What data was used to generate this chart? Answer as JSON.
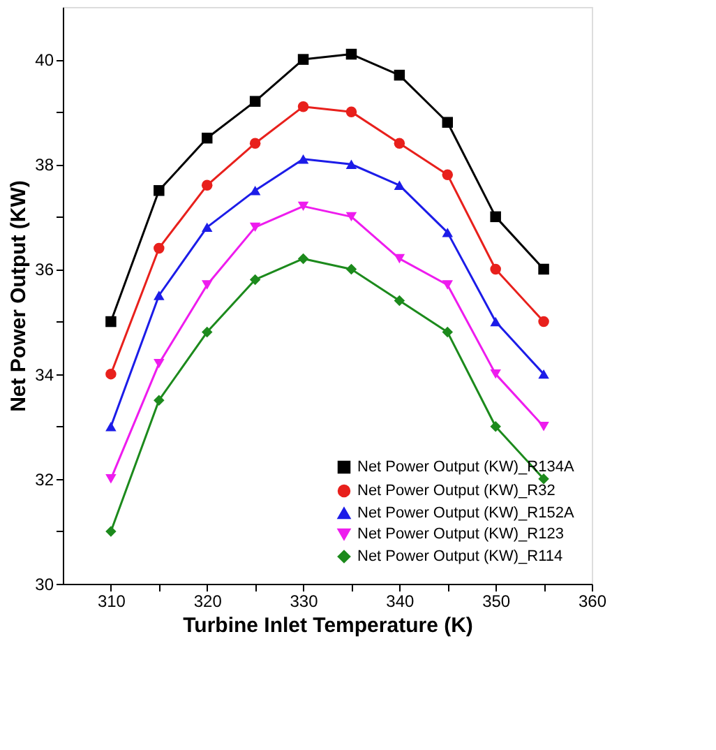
{
  "chart_data": {
    "type": "line",
    "xlabel": "Turbine Inlet Temperature (K)",
    "ylabel": "Net Power Output (KW)",
    "x": [
      310,
      315,
      320,
      325,
      330,
      335,
      340,
      345,
      350,
      355
    ],
    "xlim": [
      305,
      360
    ],
    "ylim": [
      30,
      41
    ],
    "xticks": [
      310,
      {
        "value": 315,
        "label": null
      },
      320,
      {
        "value": 325,
        "label": null
      },
      330,
      {
        "value": 335,
        "label": null
      },
      340,
      {
        "value": 345,
        "label": null
      },
      350,
      {
        "value": 355,
        "label": null
      },
      360
    ],
    "yticks": [
      30,
      {
        "value": 31,
        "label": null
      },
      32,
      {
        "value": 33,
        "label": null
      },
      34,
      {
        "value": 35,
        "label": null
      },
      36,
      {
        "value": 37,
        "label": null
      },
      38,
      {
        "value": 39,
        "label": null
      },
      40
    ],
    "grid": false,
    "legend": "bottom right",
    "series": [
      {
        "name": "Net Power Output (KW)_R134A",
        "color": "#000000",
        "marker": "square",
        "values": [
          35,
          37.5,
          38.5,
          39.2,
          40,
          40.1,
          39.7,
          38.8,
          37,
          36
        ]
      },
      {
        "name": "Net Power Output (KW)_R32",
        "color": "#e8201c",
        "marker": "circle",
        "values": [
          34,
          36.4,
          37.6,
          38.4,
          39.1,
          39.0,
          38.4,
          37.8,
          36,
          35
        ]
      },
      {
        "name": "Net Power Output (KW)_R152A",
        "color": "#1c1ce8",
        "marker": "triangle",
        "values": [
          33,
          35.5,
          36.8,
          37.5,
          38.1,
          38.0,
          37.6,
          36.7,
          35,
          34
        ]
      },
      {
        "name": "Net Power Output (KW)_R123",
        "color": "#ee1cee",
        "marker": "triangle-down",
        "values": [
          32,
          34.2,
          35.7,
          36.8,
          37.2,
          37.0,
          36.2,
          35.7,
          34,
          33
        ]
      },
      {
        "name": "Net Power Output (KW)_R114",
        "color": "#1c8a1c",
        "marker": "diamond",
        "values": [
          31,
          33.5,
          34.8,
          35.8,
          36.2,
          36.0,
          35.4,
          34.8,
          33,
          32
        ]
      }
    ]
  }
}
